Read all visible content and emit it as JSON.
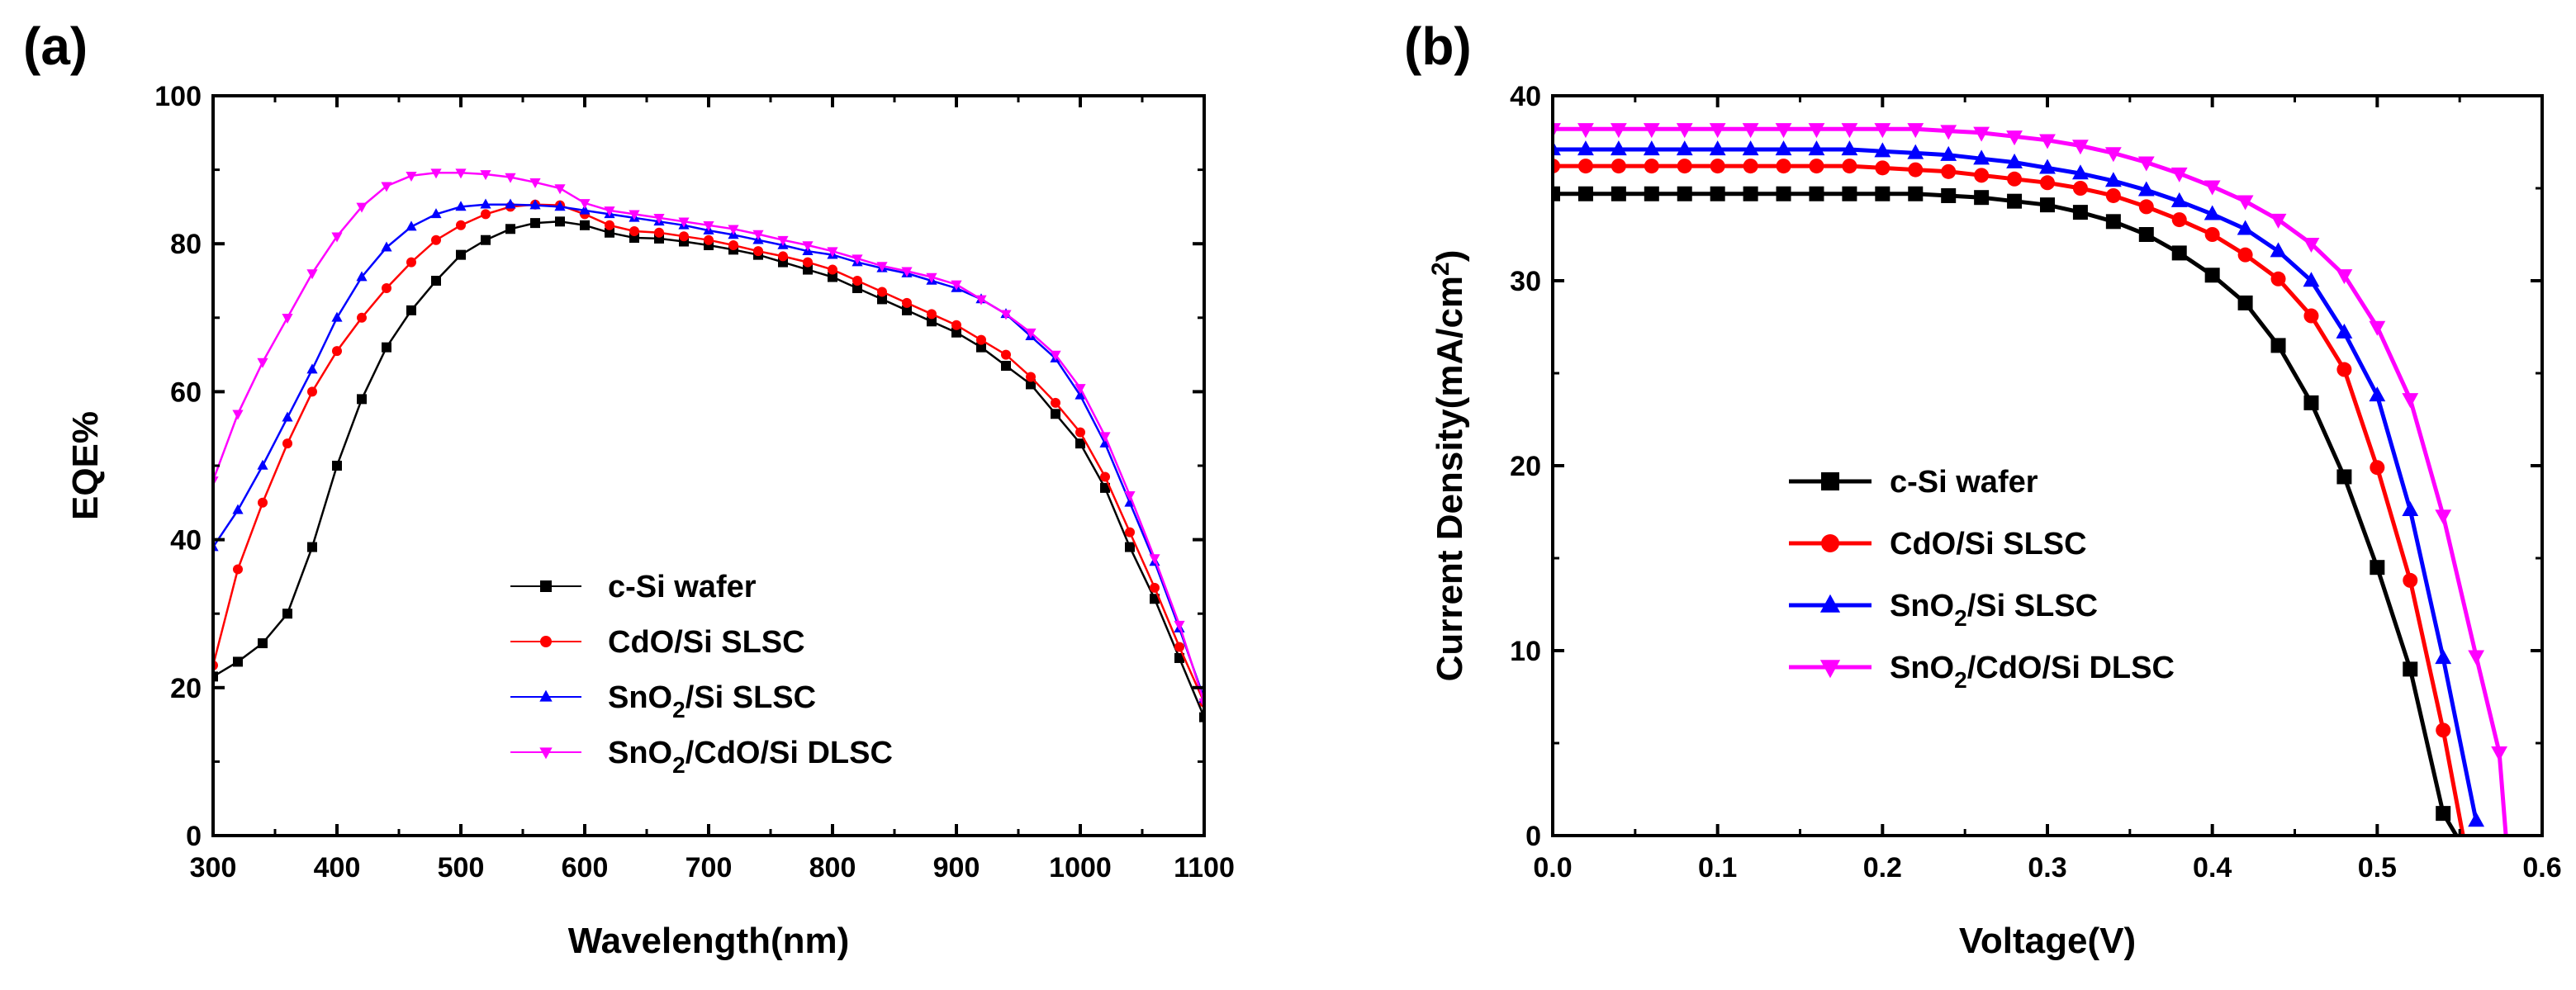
{
  "chart_data": [
    {
      "panel_label": "(a)",
      "type": "line",
      "xlabel": "Wavelength(nm)",
      "ylabel": "EQE%",
      "xlim": [
        300,
        1100
      ],
      "ylim": [
        0,
        100
      ],
      "xticks": [
        300,
        400,
        500,
        600,
        700,
        800,
        900,
        1000,
        1100
      ],
      "yticks": [
        0,
        20,
        40,
        60,
        80,
        100
      ],
      "legend_position": "lower-center",
      "series": [
        {
          "name": "c-Si wafer",
          "name_main": "c-Si wafer",
          "color": "#000000",
          "marker": "square",
          "x": [
            300,
            320,
            340,
            360,
            380,
            400,
            420,
            440,
            460,
            480,
            500,
            520,
            540,
            560,
            580,
            600,
            620,
            640,
            660,
            680,
            700,
            720,
            740,
            760,
            780,
            800,
            820,
            840,
            860,
            880,
            900,
            920,
            940,
            960,
            980,
            1000,
            1020,
            1040,
            1060,
            1080,
            1100
          ],
          "y": [
            21.5,
            23.5,
            26,
            30,
            39,
            50,
            59,
            66,
            71,
            75,
            78.5,
            80.5,
            82,
            82.8,
            83,
            82.5,
            81.5,
            80.8,
            80.7,
            80.3,
            79.8,
            79.2,
            78.5,
            77.5,
            76.5,
            75.5,
            74,
            72.5,
            71,
            69.5,
            68,
            66,
            63.5,
            61,
            57,
            53,
            47,
            39,
            32,
            24,
            16
          ]
        },
        {
          "name": "CdO/Si SLSC",
          "name_main": "CdO/Si SLSC",
          "color": "#ff0000",
          "marker": "circle",
          "x": [
            300,
            320,
            340,
            360,
            380,
            400,
            420,
            440,
            460,
            480,
            500,
            520,
            540,
            560,
            580,
            600,
            620,
            640,
            660,
            680,
            700,
            720,
            740,
            760,
            780,
            800,
            820,
            840,
            860,
            880,
            900,
            920,
            940,
            960,
            980,
            1000,
            1020,
            1040,
            1060,
            1080,
            1100
          ],
          "y": [
            23,
            36,
            45,
            53,
            60,
            65.5,
            70,
            74,
            77.5,
            80.5,
            82.5,
            84,
            85,
            85.3,
            85.2,
            84,
            82.5,
            81.7,
            81.5,
            81,
            80.5,
            79.8,
            79,
            78.3,
            77.5,
            76.5,
            75,
            73.5,
            72,
            70.5,
            69,
            67,
            65,
            62,
            58.5,
            54.5,
            48.5,
            41,
            33.5,
            25.5,
            18
          ]
        },
        {
          "name": "SnO2/Si SLSC",
          "name_main": "SnO",
          "name_sub": "2",
          "name_rest": "/Si SLSC",
          "color": "#0000ff",
          "marker": "triangle",
          "x": [
            300,
            320,
            340,
            360,
            380,
            400,
            420,
            440,
            460,
            480,
            500,
            520,
            540,
            560,
            580,
            600,
            620,
            640,
            660,
            680,
            700,
            720,
            740,
            760,
            780,
            800,
            820,
            840,
            860,
            880,
            900,
            920,
            940,
            960,
            980,
            1000,
            1020,
            1040,
            1060,
            1080,
            1100
          ],
          "y": [
            39,
            44,
            50,
            56.5,
            63,
            70,
            75.5,
            79.5,
            82.3,
            84,
            85,
            85.3,
            85.3,
            85.2,
            85,
            84.5,
            84,
            83.5,
            83,
            82.5,
            81.8,
            81.2,
            80.5,
            79.8,
            79,
            78.5,
            77.5,
            76.7,
            76,
            75,
            74,
            72.5,
            70.5,
            67.5,
            64.5,
            59.5,
            53,
            45,
            37,
            28,
            18.5
          ]
        },
        {
          "name": "SnO2/CdO/Si DLSC",
          "name_main": "SnO",
          "name_sub": "2",
          "name_rest": "/CdO/Si DLSC",
          "color": "#ff00ff",
          "marker": "triangle-down",
          "x": [
            300,
            320,
            340,
            360,
            380,
            400,
            420,
            440,
            460,
            480,
            500,
            520,
            540,
            560,
            580,
            600,
            620,
            640,
            660,
            680,
            700,
            720,
            740,
            760,
            780,
            800,
            820,
            840,
            860,
            880,
            900,
            920,
            940,
            960,
            980,
            1000,
            1020,
            1040,
            1060,
            1080,
            1100
          ],
          "y": [
            48,
            57,
            64,
            70,
            76,
            81,
            85,
            87.8,
            89.2,
            89.6,
            89.6,
            89.4,
            89,
            88.3,
            87.5,
            85.5,
            84.5,
            84,
            83.5,
            83,
            82.5,
            82,
            81.3,
            80.5,
            79.8,
            79,
            78,
            77,
            76.3,
            75.5,
            74.5,
            72.5,
            70.5,
            68,
            65,
            60.5,
            54,
            46,
            37.5,
            28.5,
            18
          ]
        }
      ]
    },
    {
      "panel_label": "(b)",
      "type": "line",
      "xlabel": "Voltage(V)",
      "ylabel": "Current Density(mA/cm",
      "ylabel_sup": "2",
      "ylabel_end": ")",
      "xlim": [
        0,
        0.6
      ],
      "ylim": [
        0,
        40
      ],
      "xticks": [
        0.0,
        0.1,
        0.2,
        0.3,
        0.4,
        0.5,
        0.6
      ],
      "xtick_labels": [
        "0.0",
        "0.1",
        "0.2",
        "0.3",
        "0.4",
        "0.5",
        "0.6"
      ],
      "yticks": [
        0,
        10,
        20,
        30,
        40
      ],
      "legend_position": "center",
      "series": [
        {
          "name": "c-Si wafer",
          "name_main": "c-Si wafer",
          "color": "#000000",
          "marker": "square",
          "x": [
            0.0,
            0.02,
            0.04,
            0.06,
            0.08,
            0.1,
            0.12,
            0.14,
            0.16,
            0.18,
            0.2,
            0.22,
            0.24,
            0.26,
            0.28,
            0.3,
            0.32,
            0.34,
            0.36,
            0.38,
            0.4,
            0.42,
            0.44,
            0.46,
            0.48,
            0.5,
            0.52,
            0.54,
            0.548
          ],
          "y": [
            34.7,
            34.7,
            34.7,
            34.7,
            34.7,
            34.7,
            34.7,
            34.7,
            34.7,
            34.7,
            34.7,
            34.7,
            34.6,
            34.5,
            34.3,
            34.1,
            33.7,
            33.2,
            32.5,
            31.5,
            30.3,
            28.8,
            26.5,
            23.4,
            19.4,
            14.5,
            9.0,
            1.2,
            0.0
          ]
        },
        {
          "name": "CdO/Si SLSC",
          "name_main": "CdO/Si SLSC",
          "color": "#ff0000",
          "marker": "circle",
          "x": [
            0.0,
            0.02,
            0.04,
            0.06,
            0.08,
            0.1,
            0.12,
            0.14,
            0.16,
            0.18,
            0.2,
            0.22,
            0.24,
            0.26,
            0.28,
            0.3,
            0.32,
            0.34,
            0.36,
            0.38,
            0.4,
            0.42,
            0.44,
            0.46,
            0.48,
            0.5,
            0.52,
            0.54,
            0.552
          ],
          "y": [
            36.2,
            36.2,
            36.2,
            36.2,
            36.2,
            36.2,
            36.2,
            36.2,
            36.2,
            36.2,
            36.1,
            36.0,
            35.9,
            35.7,
            35.5,
            35.3,
            35.0,
            34.6,
            34.0,
            33.3,
            32.5,
            31.4,
            30.1,
            28.1,
            25.2,
            19.9,
            13.8,
            5.7,
            0.0
          ]
        },
        {
          "name": "SnO2/Si SLSC",
          "name_main": "SnO",
          "name_sub": "2",
          "name_rest": "/Si SLSC",
          "color": "#0000ff",
          "marker": "triangle",
          "x": [
            0.0,
            0.02,
            0.04,
            0.06,
            0.08,
            0.1,
            0.12,
            0.14,
            0.16,
            0.18,
            0.2,
            0.22,
            0.24,
            0.26,
            0.28,
            0.3,
            0.32,
            0.34,
            0.36,
            0.38,
            0.4,
            0.42,
            0.44,
            0.46,
            0.48,
            0.5,
            0.52,
            0.54,
            0.56
          ],
          "y": [
            37.1,
            37.1,
            37.1,
            37.1,
            37.1,
            37.1,
            37.1,
            37.1,
            37.1,
            37.1,
            37.0,
            36.9,
            36.8,
            36.6,
            36.4,
            36.1,
            35.8,
            35.4,
            34.9,
            34.3,
            33.6,
            32.8,
            31.6,
            30.0,
            27.2,
            23.8,
            17.6,
            9.6,
            0.8
          ]
        },
        {
          "name": "SnO2/CdO/Si DLSC",
          "name_main": "SnO",
          "name_sub": "2",
          "name_rest": "/CdO/Si DLSC",
          "color": "#ff00ff",
          "marker": "triangle-down",
          "x": [
            0.0,
            0.02,
            0.04,
            0.06,
            0.08,
            0.1,
            0.12,
            0.14,
            0.16,
            0.18,
            0.2,
            0.22,
            0.24,
            0.26,
            0.28,
            0.3,
            0.32,
            0.34,
            0.36,
            0.38,
            0.4,
            0.42,
            0.44,
            0.46,
            0.48,
            0.5,
            0.52,
            0.54,
            0.56,
            0.574,
            0.578
          ],
          "y": [
            38.2,
            38.2,
            38.2,
            38.2,
            38.2,
            38.2,
            38.2,
            38.2,
            38.2,
            38.2,
            38.2,
            38.2,
            38.1,
            38.0,
            37.8,
            37.6,
            37.3,
            36.9,
            36.4,
            35.8,
            35.1,
            34.3,
            33.3,
            32.0,
            30.3,
            27.5,
            23.6,
            17.3,
            9.7,
            4.5,
            0.0
          ]
        }
      ]
    }
  ]
}
